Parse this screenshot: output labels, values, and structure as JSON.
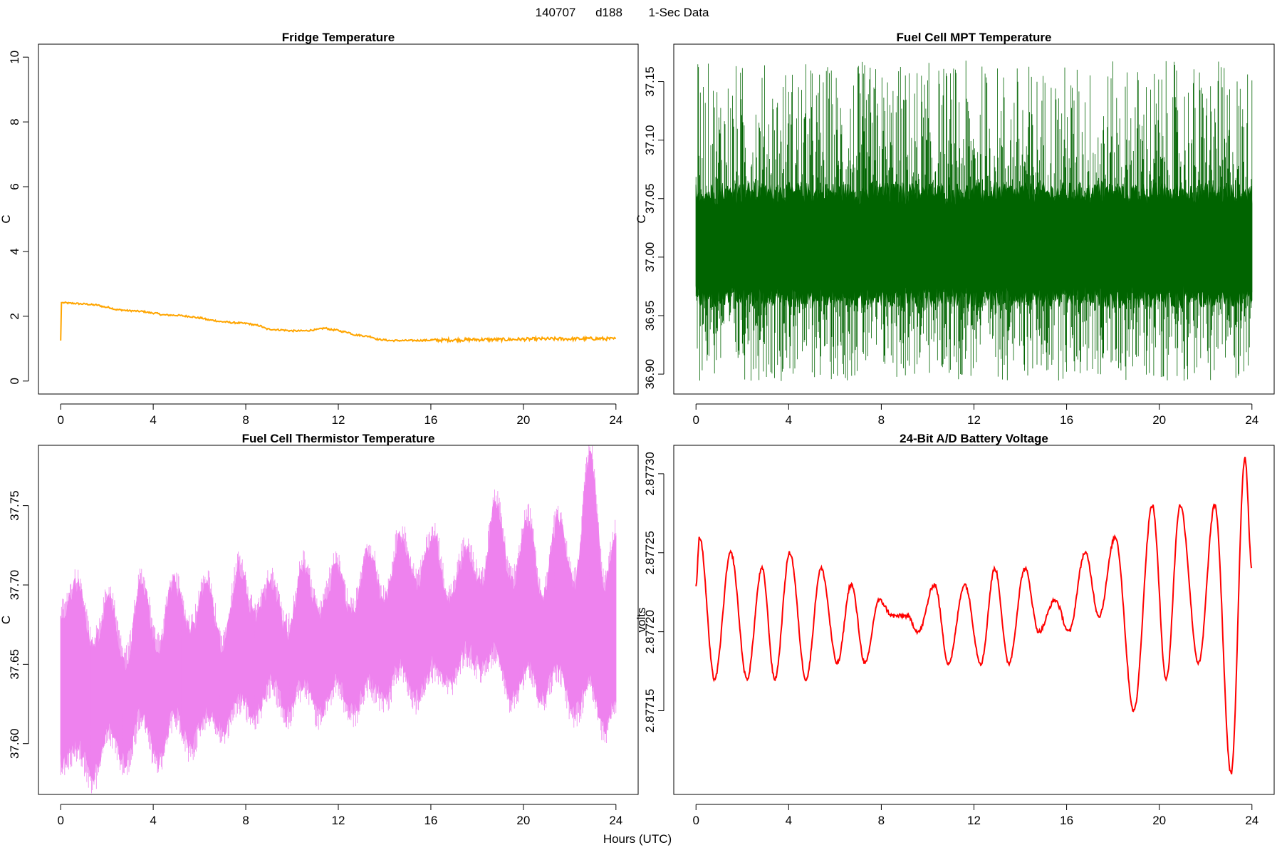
{
  "header": {
    "date_code": "140707",
    "day_code": "d188",
    "data_type": "1-Sec Data"
  },
  "x_axis_label": "Hours (UTC)",
  "chart_data": [
    {
      "type": "line",
      "title": "Fridge Temperature",
      "xlabel": "",
      "ylabel": "C",
      "color": "#FFA500",
      "xlim": [
        -0.96,
        24.96
      ],
      "ylim": [
        -0.4,
        10.4
      ],
      "xticks": [
        0,
        4,
        8,
        12,
        16,
        20,
        24
      ],
      "yticks": [
        0,
        2,
        4,
        6,
        8,
        10
      ],
      "ytick_labels": [
        "0",
        "2",
        "4",
        "6",
        "8",
        "10"
      ],
      "noise_band": 0.05,
      "x": [
        0,
        0.02,
        0.05,
        0.5,
        1.0,
        1.5,
        2.0,
        2.5,
        3.0,
        3.5,
        4.0,
        4.5,
        5.0,
        5.5,
        6.0,
        6.5,
        7.0,
        7.5,
        8.0,
        8.5,
        9.0,
        9.5,
        10.0,
        10.5,
        11.0,
        11.4,
        11.8,
        12.3,
        12.8,
        13.3,
        13.8,
        14.3,
        15.0,
        16.0,
        17.0,
        18.0,
        19.0,
        20.0,
        21.0,
        22.0,
        23.0,
        24.0
      ],
      "values": [
        1.25,
        2.42,
        2.42,
        2.4,
        2.38,
        2.35,
        2.28,
        2.2,
        2.17,
        2.15,
        2.1,
        2.04,
        2.03,
        2.0,
        1.95,
        1.88,
        1.83,
        1.8,
        1.78,
        1.72,
        1.6,
        1.58,
        1.55,
        1.55,
        1.58,
        1.63,
        1.58,
        1.52,
        1.42,
        1.38,
        1.28,
        1.25,
        1.25,
        1.26,
        1.27,
        1.28,
        1.28,
        1.29,
        1.3,
        1.3,
        1.31,
        1.3
      ]
    },
    {
      "type": "line",
      "title": "Fuel Cell MPT Temperature",
      "xlabel": "",
      "ylabel": "C",
      "color": "#006400",
      "xlim": [
        -0.96,
        24.96
      ],
      "ylim": [
        36.883,
        37.182
      ],
      "xticks": [
        0,
        4,
        8,
        12,
        16,
        20,
        24
      ],
      "yticks": [
        36.9,
        36.95,
        37.0,
        37.05,
        37.1,
        37.15
      ],
      "ytick_labels": [
        "36.90",
        "36.95",
        "37.00",
        "37.05",
        "37.10",
        "37.15"
      ],
      "mean": 37.01,
      "band_half_width": 0.04,
      "max_value": 37.168,
      "min_value": 36.894
    },
    {
      "type": "line",
      "title": "Fuel Cell Thermistor Temperature",
      "xlabel": "",
      "ylabel": "C",
      "color": "#EE82EE",
      "xlim": [
        -0.96,
        24.96
      ],
      "ylim": [
        37.568,
        37.788
      ],
      "xticks": [
        0,
        4,
        8,
        12,
        16,
        20,
        24
      ],
      "yticks": [
        37.6,
        37.65,
        37.7,
        37.75
      ],
      "ytick_labels": [
        "37.60",
        "37.65",
        "37.70",
        "37.75"
      ],
      "x": [
        0,
        0.7,
        1.4,
        2.1,
        2.8,
        3.5,
        4.2,
        4.9,
        5.6,
        6.3,
        7.0,
        7.7,
        8.4,
        9.1,
        9.8,
        10.5,
        11.2,
        11.9,
        12.6,
        13.3,
        14.0,
        14.7,
        15.4,
        16.1,
        16.8,
        17.5,
        18.2,
        18.8,
        19.5,
        20.2,
        20.8,
        21.5,
        22.2,
        22.9,
        23.5,
        24.0
      ],
      "upper": [
        37.68,
        37.7,
        37.66,
        37.69,
        37.65,
        37.7,
        37.66,
        37.7,
        37.67,
        37.7,
        37.66,
        37.71,
        37.68,
        37.7,
        37.67,
        37.71,
        37.68,
        37.71,
        37.68,
        37.72,
        37.69,
        37.73,
        37.7,
        37.73,
        37.69,
        37.72,
        37.7,
        37.75,
        37.7,
        37.74,
        37.69,
        37.74,
        37.7,
        37.78,
        37.7,
        37.73
      ],
      "lower": [
        37.59,
        37.6,
        37.58,
        37.61,
        37.59,
        37.62,
        37.59,
        37.62,
        37.6,
        37.62,
        37.61,
        37.63,
        37.62,
        37.64,
        37.62,
        37.64,
        37.62,
        37.64,
        37.62,
        37.64,
        37.63,
        37.65,
        37.63,
        37.65,
        37.64,
        37.66,
        37.65,
        37.66,
        37.63,
        37.65,
        37.63,
        37.65,
        37.62,
        37.64,
        37.61,
        37.63
      ]
    },
    {
      "type": "line",
      "title": "24-Bit A/D Battery Voltage",
      "xlabel": "",
      "ylabel": "volts",
      "color": "#FF0000",
      "xlim": [
        -0.96,
        24.96
      ],
      "ylim": [
        2.877097,
        2.877318
      ],
      "xticks": [
        0,
        4,
        8,
        12,
        16,
        20,
        24
      ],
      "yticks": [
        2.87715,
        2.8772,
        2.87725,
        2.8773
      ],
      "ytick_labels": [
        "2.87715",
        "2.87720",
        "2.87725",
        "2.87730"
      ],
      "x": [
        0,
        0.15,
        0.8,
        1.5,
        2.2,
        2.85,
        3.4,
        4.05,
        4.75,
        5.4,
        6.1,
        6.7,
        7.3,
        7.9,
        8.5,
        9.1,
        9.6,
        10.3,
        10.9,
        11.6,
        12.3,
        12.9,
        13.5,
        14.2,
        14.8,
        15.5,
        16.1,
        16.8,
        17.4,
        18.1,
        18.9,
        19.7,
        20.3,
        20.9,
        21.7,
        22.4,
        23.1,
        23.7,
        24.0
      ],
      "values": [
        2.87723,
        2.87726,
        2.87717,
        2.87725,
        2.87717,
        2.87724,
        2.87717,
        2.87725,
        2.87717,
        2.87724,
        2.87718,
        2.87723,
        2.87718,
        2.87722,
        2.87721,
        2.87721,
        2.8772,
        2.87723,
        2.87718,
        2.87723,
        2.87718,
        2.87724,
        2.87718,
        2.87724,
        2.8772,
        2.87722,
        2.8772,
        2.87725,
        2.87721,
        2.87726,
        2.87715,
        2.87728,
        2.87717,
        2.87728,
        2.87718,
        2.87728,
        2.87711,
        2.87731,
        2.87724
      ]
    }
  ]
}
